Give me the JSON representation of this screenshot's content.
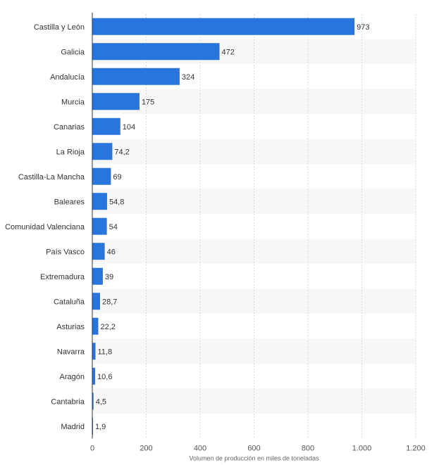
{
  "chart_data": {
    "type": "bar",
    "orientation": "horizontal",
    "title": "",
    "xlabel": "Volumen de producción en miles de toneladas",
    "ylabel": "",
    "categories": [
      "Castilla y León",
      "Galicia",
      "Andalucía",
      "Murcia",
      "Canarias",
      "La Rioja",
      "Castilla-La Mancha",
      "Baleares",
      "Comunidad Valenciana",
      "País Vasco",
      "Extremadura",
      "Cataluña",
      "Asturias",
      "Navarra",
      "Aragón",
      "Cantabria",
      "Madrid"
    ],
    "values": [
      973,
      472,
      324,
      175,
      104,
      74.2,
      69,
      54.8,
      54,
      46,
      39,
      28.7,
      22.2,
      11.8,
      10.6,
      4.5,
      1.9
    ],
    "value_labels": [
      "973",
      "472",
      "324",
      "175",
      "104",
      "74,2",
      "69",
      "54,8",
      "54",
      "46",
      "39",
      "28,7",
      "22,2",
      "11,8",
      "10,6",
      "4,5",
      "1,9"
    ],
    "xlim": [
      0,
      1200
    ],
    "ticks": [
      0,
      200,
      400,
      600,
      800,
      1000,
      1200
    ],
    "tick_labels": [
      "0",
      "200",
      "400",
      "600",
      "800",
      "1.000",
      "1.200"
    ],
    "grid": true,
    "legend": "none",
    "colors": {
      "bar": "#2876dd",
      "band": "#f7f7f7",
      "grid": "#d9d9d9",
      "axis": "#333333",
      "text": "#333333"
    }
  }
}
